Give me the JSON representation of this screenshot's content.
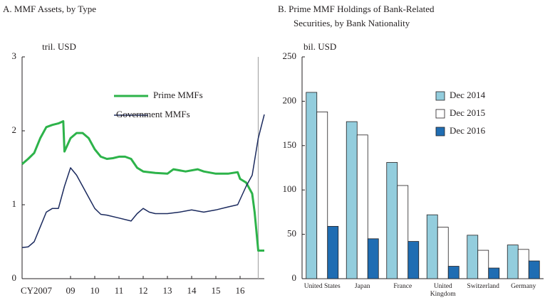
{
  "chart_data": [
    {
      "type": "line",
      "title": "A. MMF Assets, by Type",
      "y_label": "tril. USD",
      "xlim": [
        2007,
        2017
      ],
      "ylim": [
        0,
        3
      ],
      "yticks": [
        0,
        1,
        2,
        3
      ],
      "xticks": [
        {
          "value": 2007,
          "label": "CY2007"
        },
        {
          "value": 2009,
          "label": "09"
        },
        {
          "value": 2010,
          "label": "10"
        },
        {
          "value": 2011,
          "label": "11"
        },
        {
          "value": 2012,
          "label": "12"
        },
        {
          "value": 2013,
          "label": "13"
        },
        {
          "value": 2014,
          "label": "14"
        },
        {
          "value": 2015,
          "label": "15"
        },
        {
          "value": 2016,
          "label": "16"
        }
      ],
      "reference_line": 2016.75,
      "reference_color": "#aaaaaa",
      "series": [
        {
          "name": "Prime MMFs",
          "color": "#2db34a",
          "width": 3,
          "x": [
            2007.0,
            2007.25,
            2007.5,
            2007.75,
            2008.0,
            2008.25,
            2008.5,
            2008.7,
            2008.75,
            2009.0,
            2009.25,
            2009.5,
            2009.75,
            2010.0,
            2010.25,
            2010.5,
            2010.75,
            2011.0,
            2011.25,
            2011.5,
            2011.75,
            2012.0,
            2012.5,
            2013.0,
            2013.25,
            2013.75,
            2014.25,
            2014.5,
            2015.0,
            2015.5,
            2015.9,
            2016.0,
            2016.25,
            2016.5,
            2016.6,
            2016.75,
            2017.0
          ],
          "values": [
            1.55,
            1.62,
            1.7,
            1.9,
            2.05,
            2.08,
            2.1,
            2.13,
            1.72,
            1.9,
            1.97,
            1.97,
            1.9,
            1.75,
            1.65,
            1.62,
            1.63,
            1.65,
            1.65,
            1.62,
            1.5,
            1.45,
            1.43,
            1.42,
            1.48,
            1.45,
            1.48,
            1.45,
            1.42,
            1.42,
            1.44,
            1.35,
            1.3,
            1.15,
            0.9,
            0.38,
            0.38
          ]
        },
        {
          "name": "Government MMFs",
          "color": "#1b2a5e",
          "width": 1.5,
          "x": [
            2007.0,
            2007.25,
            2007.5,
            2007.75,
            2008.0,
            2008.25,
            2008.5,
            2008.75,
            2009.0,
            2009.25,
            2009.5,
            2009.75,
            2010.0,
            2010.25,
            2010.5,
            2011.0,
            2011.5,
            2011.75,
            2012.0,
            2012.25,
            2012.5,
            2013.0,
            2013.5,
            2014.0,
            2014.5,
            2015.0,
            2015.5,
            2015.9,
            2016.25,
            2016.5,
            2016.75,
            2017.0
          ],
          "values": [
            0.42,
            0.43,
            0.5,
            0.7,
            0.9,
            0.95,
            0.95,
            1.25,
            1.5,
            1.4,
            1.25,
            1.1,
            0.95,
            0.87,
            0.86,
            0.82,
            0.78,
            0.88,
            0.95,
            0.9,
            0.88,
            0.88,
            0.9,
            0.93,
            0.9,
            0.93,
            0.97,
            1.0,
            1.25,
            1.4,
            1.9,
            2.22
          ]
        }
      ]
    },
    {
      "type": "bar",
      "title": [
        "B. Prime MMF Holdings of Bank-Related",
        "Securities, by Bank Nationality"
      ],
      "y_label": "bil. USD",
      "categories": [
        "United States",
        "Japan",
        "France",
        "United Kingdom",
        "Switzerland",
        "Germany"
      ],
      "ylim": [
        0,
        250
      ],
      "yticks": [
        0,
        50,
        100,
        150,
        200,
        250
      ],
      "series": [
        {
          "name": "Dec 2014",
          "color": "#93cddd",
          "values": [
            210,
            177,
            131,
            72,
            49,
            38
          ]
        },
        {
          "name": "Dec 2015",
          "color": "#ffffff",
          "values": [
            188,
            162,
            105,
            58,
            32,
            33
          ]
        },
        {
          "name": "Dec 2016",
          "color": "#1f6db3",
          "values": [
            59,
            45,
            42,
            14,
            12,
            20
          ]
        }
      ]
    }
  ]
}
